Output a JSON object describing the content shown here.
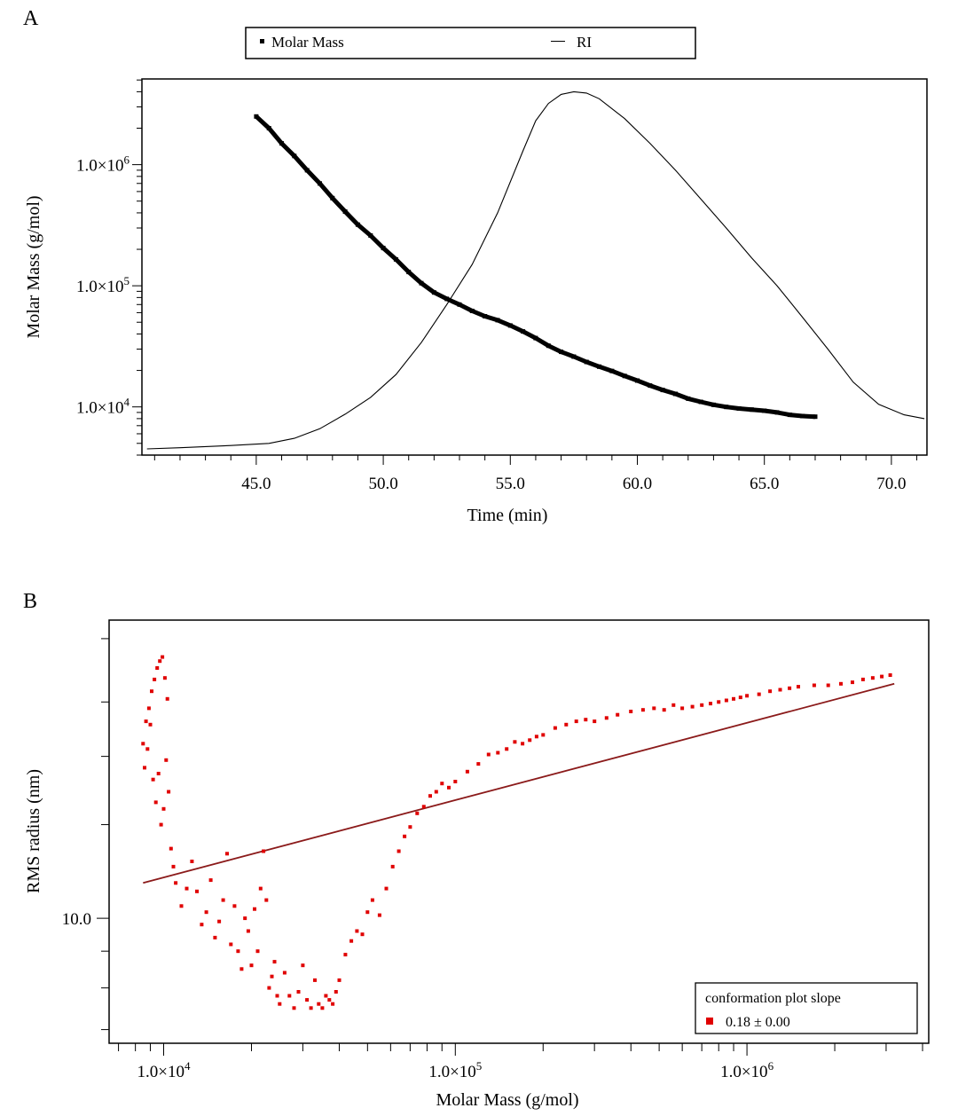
{
  "chart_data": [
    {
      "panel_label": "A",
      "type": "line",
      "x_label": "Time (min)",
      "y_label": "Molar Mass (g/mol)",
      "x_scale": "linear",
      "y_scale": "log",
      "xlim": [
        40.5,
        71.4
      ],
      "ylim": [
        4000,
        5100000
      ],
      "x_ticks": [
        {
          "value": 45,
          "label": "45.0"
        },
        {
          "value": 50,
          "label": "50.0"
        },
        {
          "value": 55,
          "label": "55.0"
        },
        {
          "value": 60,
          "label": "60.0"
        },
        {
          "value": 65,
          "label": "65.0"
        },
        {
          "value": 70,
          "label": "70.0"
        }
      ],
      "y_ticks": [
        {
          "value": 10000,
          "label_base": "1.0×10",
          "label_exp": "4"
        },
        {
          "value": 100000,
          "label_base": "1.0×10",
          "label_exp": "5"
        },
        {
          "value": 1000000,
          "label_base": "1.0×10",
          "label_exp": "6"
        }
      ],
      "legend": {
        "placement": "top, above plot",
        "entries": [
          {
            "label": "Molar Mass",
            "marker": "square"
          },
          {
            "label": "RI",
            "marker": "line"
          }
        ]
      },
      "series": [
        {
          "name": "Molar Mass",
          "style": "thick black markers",
          "color": "#000000",
          "x": [
            45.0,
            45.5,
            46.0,
            46.5,
            47.0,
            47.5,
            48.0,
            48.5,
            49.0,
            49.5,
            50.0,
            50.5,
            51.0,
            51.5,
            52.0,
            52.5,
            53.0,
            53.5,
            54.0,
            54.5,
            55.0,
            55.5,
            56.0,
            56.5,
            57.0,
            57.5,
            58.0,
            58.5,
            59.0,
            59.5,
            60.0,
            60.5,
            61.0,
            61.5,
            62.0,
            62.5,
            63.0,
            63.5,
            64.0,
            64.5,
            65.0,
            65.5,
            66.0,
            66.5,
            67.0
          ],
          "y": [
            2500000,
            2000000,
            1500000,
            1180000,
            900000,
            700000,
            530000,
            410000,
            320000,
            260000,
            205000,
            165000,
            130000,
            105000,
            88000,
            78000,
            70000,
            62000,
            56000,
            52000,
            47000,
            42000,
            37000,
            32000,
            28500,
            26000,
            23500,
            21500,
            19800,
            18000,
            16500,
            15000,
            13800,
            12800,
            11700,
            11000,
            10400,
            10000,
            9700,
            9500,
            9300,
            9000,
            8600,
            8400,
            8300
          ]
        },
        {
          "name": "RI",
          "style": "thin black line, relative scale",
          "color": "#000000",
          "x": [
            40.7,
            42.0,
            44.0,
            45.5,
            46.5,
            47.5,
            48.5,
            49.5,
            50.5,
            51.5,
            52.5,
            53.5,
            54.5,
            55.5,
            56.0,
            56.5,
            57.0,
            57.5,
            58.0,
            58.5,
            59.5,
            60.5,
            61.5,
            62.5,
            63.5,
            64.5,
            65.5,
            66.5,
            67.5,
            68.5,
            69.5,
            70.5,
            71.3
          ],
          "y": [
            4500,
            4600,
            4800,
            5000,
            5500,
            6600,
            8700,
            12000,
            18500,
            34000,
            70000,
            150000,
            400000,
            1300000,
            2300000,
            3200000,
            3800000,
            4000000,
            3900000,
            3500000,
            2400000,
            1500000,
            900000,
            520000,
            300000,
            170000,
            100000,
            55000,
            30000,
            16000,
            10500,
            8600,
            8000
          ]
        }
      ]
    },
    {
      "panel_label": "B",
      "type": "scatter",
      "x_label": "Molar Mass (g/mol)",
      "y_label": "RMS radius (nm)",
      "x_scale": "log",
      "y_scale": "log",
      "xlim": [
        6500,
        4200000
      ],
      "ylim": [
        6.7,
        26
      ],
      "x_ticks": [
        {
          "value": 10000,
          "label_base": "1.0×10",
          "label_exp": "4"
        },
        {
          "value": 100000,
          "label_base": "1.0×10",
          "label_exp": "5"
        },
        {
          "value": 1000000,
          "label_base": "1.0×10",
          "label_exp": "6"
        }
      ],
      "y_ticks": [
        {
          "value": 10,
          "label": "10.0"
        }
      ],
      "legend": {
        "placement": "bottom-right",
        "title": "conformation plot slope",
        "entries": [
          {
            "label": "0.18 ± 0.00",
            "marker": "square",
            "color": "#e00000"
          }
        ]
      },
      "fit_line": {
        "color": "#8b1a1a",
        "slope": 0.18,
        "x": [
          8500,
          3200000
        ],
        "y": [
          11.2,
          21.2
        ]
      },
      "series": [
        {
          "name": "0.18 ± 0.00",
          "style": "red square markers",
          "color": "#e00000",
          "x": [
            8500,
            8700,
            8900,
            9100,
            9300,
            9500,
            9700,
            9900,
            10100,
            10300,
            8600,
            8800,
            9000,
            9200,
            9400,
            9600,
            9800,
            10000,
            10200,
            10400,
            10600,
            10800,
            11000,
            11500,
            12000,
            12500,
            13000,
            13500,
            14000,
            14500,
            15000,
            15500,
            16000,
            16500,
            17000,
            17500,
            18000,
            18500,
            19000,
            19500,
            20000,
            20500,
            21000,
            21500,
            22000,
            22500,
            23000,
            23500,
            24000,
            24500,
            25000,
            26000,
            27000,
            28000,
            29000,
            30000,
            31000,
            32000,
            33000,
            34000,
            35000,
            36000,
            37000,
            38000,
            39000,
            40000,
            42000,
            44000,
            46000,
            48000,
            50000,
            52000,
            55000,
            58000,
            61000,
            64000,
            67000,
            70000,
            74000,
            78000,
            82000,
            86000,
            90000,
            95000,
            100000,
            110000,
            120000,
            130000,
            140000,
            150000,
            160000,
            170000,
            180000,
            190000,
            200000,
            220000,
            240000,
            260000,
            280000,
            300000,
            330000,
            360000,
            400000,
            440000,
            480000,
            520000,
            560000,
            600000,
            650000,
            700000,
            750000,
            800000,
            850000,
            900000,
            950000,
            1000000,
            1100000,
            1200000,
            1300000,
            1400000,
            1500000,
            1700000,
            1900000,
            2100000,
            2300000,
            2500000,
            2700000,
            2900000,
            3100000
          ],
          "y": [
            17.5,
            18.8,
            19.6,
            20.7,
            21.5,
            22.3,
            22.8,
            23.1,
            21.6,
            20.2,
            16.2,
            17.2,
            18.6,
            15.6,
            14.5,
            15.9,
            13.5,
            14.2,
            16.6,
            15.0,
            12.5,
            11.8,
            11.2,
            10.4,
            11.0,
            12.0,
            10.9,
            9.8,
            10.2,
            11.3,
            9.4,
            9.9,
            10.6,
            12.3,
            9.2,
            10.4,
            9.0,
            8.5,
            10.0,
            9.6,
            8.6,
            10.3,
            9.0,
            11.0,
            12.4,
            10.6,
            8.0,
            8.3,
            8.7,
            7.8,
            7.6,
            8.4,
            7.8,
            7.5,
            7.9,
            8.6,
            7.7,
            7.5,
            8.2,
            7.6,
            7.5,
            7.8,
            7.7,
            7.6,
            7.9,
            8.2,
            8.9,
            9.3,
            9.6,
            9.5,
            10.2,
            10.6,
            10.1,
            11.0,
            11.8,
            12.4,
            13.0,
            13.4,
            14.0,
            14.3,
            14.8,
            15.0,
            15.4,
            15.2,
            15.5,
            16.0,
            16.4,
            16.9,
            17.0,
            17.2,
            17.6,
            17.5,
            17.7,
            17.9,
            18.0,
            18.4,
            18.6,
            18.8,
            18.9,
            18.8,
            19.0,
            19.2,
            19.4,
            19.5,
            19.6,
            19.5,
            19.8,
            19.6,
            19.7,
            19.8,
            19.9,
            20.0,
            20.1,
            20.2,
            20.3,
            20.4,
            20.5,
            20.7,
            20.8,
            20.9,
            21.0,
            21.1,
            21.1,
            21.2,
            21.3,
            21.5,
            21.6,
            21.7,
            21.8
          ]
        }
      ]
    }
  ]
}
